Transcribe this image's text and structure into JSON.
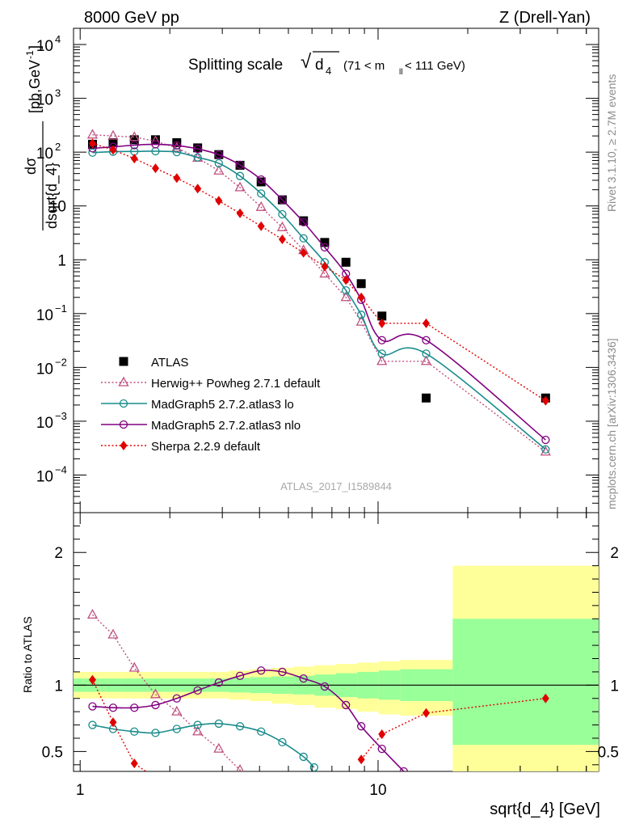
{
  "header": {
    "left": "8000 GeV pp",
    "right": "Z (Drell-Yan)"
  },
  "side": {
    "rivet": "Rivet 3.1.10, ≥ 2.7M events",
    "mcplots": "mcplots.cern.ch [arXiv:1306.3436]"
  },
  "chart_data": [
    {
      "type": "scatter",
      "title": "Splitting scale √d₄ (71 < m_ll < 111 GeV)",
      "title_main": "Splitting scale",
      "title_sub": "(71 < m",
      "title_sub2": "ll",
      "title_sub3": " < 111 GeV)",
      "xlabel": "sqrt{d_4} [GeV]",
      "ylabel": "dσ/dsqrt{d_4} [pb,GeV⁻¹]",
      "yscale": "log",
      "xscale": "log",
      "xlim": [
        0.95,
        55
      ],
      "ylim": [
        2e-05,
        20000
      ],
      "watermark": "ATLAS_2017_I1589844",
      "legend_position": "lower-left",
      "y_ticks": [
        {
          "label": "10",
          "exp": "4",
          "v": 10000
        },
        {
          "label": "10",
          "exp": "3",
          "v": 1000
        },
        {
          "label": "10",
          "exp": "2",
          "v": 100
        },
        {
          "label": "10",
          "exp": "",
          "v": 10
        },
        {
          "label": "1",
          "exp": "",
          "v": 1
        },
        {
          "label": "10",
          "exp": "−1",
          "v": 0.1
        },
        {
          "label": "10",
          "exp": "−2",
          "v": 0.01
        },
        {
          "label": "10",
          "exp": "−3",
          "v": 0.001
        },
        {
          "label": "10",
          "exp": "−4",
          "v": 0.0001
        }
      ],
      "series": [
        {
          "name": "ATLAS",
          "color": "#000000",
          "marker": "square",
          "x": [
            1.1,
            1.29,
            1.52,
            1.79,
            2.11,
            2.48,
            2.92,
            3.44,
            4.05,
            4.77,
            5.62,
            6.62,
            7.8,
            8.78,
            10.3,
            14.5,
            36.5
          ],
          "y": [
            140,
            150,
            170,
            170,
            150,
            120,
            90,
            57,
            28,
            13,
            5.3,
            2.1,
            0.9,
            0.36,
            0.09,
            0.0027,
            0.0027
          ]
        },
        {
          "name": "Herwig++ Powheg 2.7.1 default",
          "color": "#c0507f",
          "marker": "triangle",
          "dash": true,
          "x": [
            1.1,
            1.29,
            1.52,
            1.79,
            2.11,
            2.48,
            2.92,
            3.44,
            4.05,
            4.77,
            5.62,
            6.62,
            7.8,
            8.78,
            10.3,
            14.5,
            36.5
          ],
          "y": [
            210,
            200,
            190,
            160,
            120,
            78,
            45,
            22,
            9.5,
            4.0,
            1.5,
            0.55,
            0.2,
            0.07,
            0.013,
            0.013,
            0.00027
          ]
        },
        {
          "name": "MadGraph5 2.7.2.atlas3 lo",
          "color": "#1a8c8c",
          "marker": "circle",
          "x": [
            1.1,
            1.29,
            1.52,
            1.79,
            2.11,
            2.48,
            2.92,
            3.44,
            4.05,
            4.77,
            5.62,
            6.62,
            7.8,
            8.78,
            10.3,
            14.5,
            36.5
          ],
          "y": [
            98,
            102,
            103,
            104,
            100,
            80,
            62,
            36,
            17,
            7,
            2.5,
            0.9,
            0.27,
            0.095,
            0.018,
            0.018,
            0.0003
          ]
        },
        {
          "name": "MadGraph5 2.7.2.atlas3 nlo",
          "color": "#800080",
          "marker": "circle",
          "x": [
            1.1,
            1.29,
            1.52,
            1.79,
            2.11,
            2.48,
            2.92,
            3.44,
            4.05,
            4.77,
            5.62,
            6.62,
            7.8,
            8.78,
            10.3,
            14.5,
            36.5
          ],
          "y": [
            118,
            125,
            135,
            140,
            133,
            115,
            90,
            58,
            31,
            13,
            5.0,
            1.7,
            0.55,
            0.18,
            0.032,
            0.032,
            0.00045
          ]
        },
        {
          "name": "Sherpa 2.2.9 default",
          "color": "#e00000",
          "marker": "diamond",
          "dash": true,
          "x": [
            1.1,
            1.29,
            1.52,
            1.79,
            2.11,
            2.48,
            2.92,
            3.44,
            4.05,
            4.77,
            5.62,
            6.62,
            7.8,
            8.78,
            10.3,
            14.5,
            36.5
          ],
          "y": [
            145,
            110,
            76,
            50,
            33,
            21,
            12.5,
            7.3,
            4.2,
            2.4,
            1.35,
            0.75,
            0.42,
            0.2,
            0.066,
            0.066,
            0.0024
          ]
        }
      ]
    },
    {
      "type": "line",
      "ylabel": "Ratio to ATLAS",
      "xlabel": "sqrt{d_4} [GeV]",
      "xscale": "log",
      "ylim": [
        0.35,
        2.3
      ],
      "y_ticks": [
        0.5,
        1,
        2
      ],
      "y_tick_labels": [
        "0.5",
        "1",
        "2"
      ],
      "x_tick_labels": [
        "1",
        "10"
      ],
      "bands": {
        "edges": [
          0.95,
          1.17,
          1.38,
          1.63,
          1.93,
          2.27,
          2.68,
          3.16,
          3.73,
          4.4,
          5.19,
          6.12,
          7.22,
          8.52,
          10.05,
          11.86,
          17.8,
          55
        ],
        "yellow_lo": [
          0.9,
          0.9,
          0.9,
          0.9,
          0.9,
          0.9,
          0.9,
          0.89,
          0.88,
          0.86,
          0.85,
          0.83,
          0.82,
          0.8,
          0.78,
          0.77,
          0.35
        ],
        "yellow_hi": [
          1.1,
          1.1,
          1.1,
          1.1,
          1.1,
          1.1,
          1.1,
          1.11,
          1.12,
          1.13,
          1.14,
          1.15,
          1.16,
          1.17,
          1.18,
          1.19,
          1.9
        ],
        "green_lo": [
          0.95,
          0.95,
          0.95,
          0.95,
          0.95,
          0.95,
          0.95,
          0.945,
          0.94,
          0.935,
          0.93,
          0.92,
          0.91,
          0.9,
          0.89,
          0.88,
          0.55
        ],
        "green_hi": [
          1.05,
          1.05,
          1.05,
          1.05,
          1.05,
          1.05,
          1.05,
          1.055,
          1.06,
          1.065,
          1.07,
          1.08,
          1.09,
          1.1,
          1.11,
          1.12,
          1.5
        ]
      },
      "series": [
        {
          "name": "Herwig++ Powheg 2.7.1 default",
          "color": "#c0507f",
          "marker": "triangle",
          "dash": true,
          "x": [
            1.1,
            1.29,
            1.52,
            1.79,
            2.11,
            2.48,
            2.92,
            3.44,
            3.9
          ],
          "y": [
            1.53,
            1.38,
            1.13,
            0.93,
            0.8,
            0.65,
            0.52,
            0.36,
            0.3
          ]
        },
        {
          "name": "MadGraph5 2.7.2.atlas3 lo",
          "color": "#1a8c8c",
          "marker": "circle",
          "x": [
            1.1,
            1.29,
            1.52,
            1.79,
            2.11,
            2.48,
            2.92,
            3.44,
            4.05,
            4.77,
            5.62,
            6.1
          ],
          "y": [
            0.7,
            0.67,
            0.65,
            0.64,
            0.67,
            0.7,
            0.71,
            0.69,
            0.65,
            0.57,
            0.46,
            0.38
          ]
        },
        {
          "name": "MadGraph5 2.7.2.atlas3 nlo",
          "color": "#800080",
          "marker": "circle",
          "x": [
            1.1,
            1.29,
            1.52,
            1.79,
            2.11,
            2.48,
            2.92,
            3.44,
            4.05,
            4.77,
            5.62,
            6.62,
            7.8,
            8.78,
            10.3,
            12.2
          ],
          "y": [
            0.84,
            0.83,
            0.83,
            0.85,
            0.9,
            0.96,
            1.02,
            1.07,
            1.11,
            1.1,
            1.05,
            0.99,
            0.85,
            0.69,
            0.52,
            0.35
          ]
        },
        {
          "name": "Sherpa 2.2.9 default",
          "color": "#e00000",
          "marker": "diamond",
          "dash": true,
          "x": [
            1.1,
            1.29,
            1.52,
            1.79,
            8.78,
            10.3,
            14.5,
            36.5
          ],
          "y": [
            1.04,
            0.72,
            0.41,
            0.3,
            0.44,
            0.63,
            0.79,
            0.9
          ]
        }
      ]
    }
  ]
}
